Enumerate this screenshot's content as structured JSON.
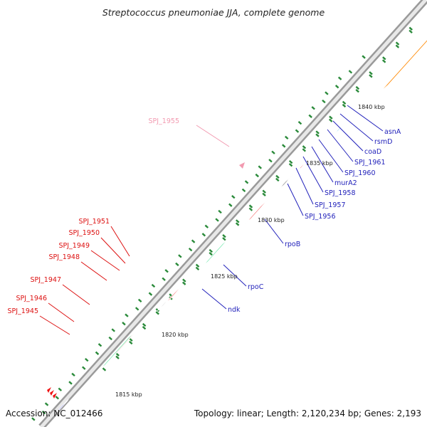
{
  "title": "Streptococcus pneumoniae JJA, complete genome",
  "accession": "Accession: NC_012466",
  "summary": "Topology: linear; Length: 2,120,234 bp; Genes: 2,193",
  "colors": {
    "label_red": "#dd1111",
    "label_blue": "#2222bb",
    "label_pink": "#f29ab0"
  },
  "kbp_ticks": [
    "1815 kbp",
    "1820 kbp",
    "1825 kbp",
    "1830 kbp",
    "1835 kbp",
    "1840 kbp"
  ],
  "gene_labels": {
    "SPJ_1955": "SPJ_1955",
    "SPJ_1951": "SPJ_1951",
    "SPJ_1950": "SPJ_1950",
    "SPJ_1949": "SPJ_1949",
    "SPJ_1948": "SPJ_1948",
    "SPJ_1947": "SPJ_1947",
    "SPJ_1946": "SPJ_1946",
    "SPJ_1945": "SPJ_1945",
    "asnA": "asnA",
    "rsmD": "rsmD",
    "coaD": "coaD",
    "SPJ_1961": "SPJ_1961",
    "SPJ_1960": "SPJ_1960",
    "murA2": "murA2",
    "SPJ_1958": "SPJ_1958",
    "SPJ_1957": "SPJ_1957",
    "SPJ_1956": "SPJ_1956",
    "rpoB": "rpoB",
    "rpoC": "rpoC",
    "ndk": "ndk"
  }
}
